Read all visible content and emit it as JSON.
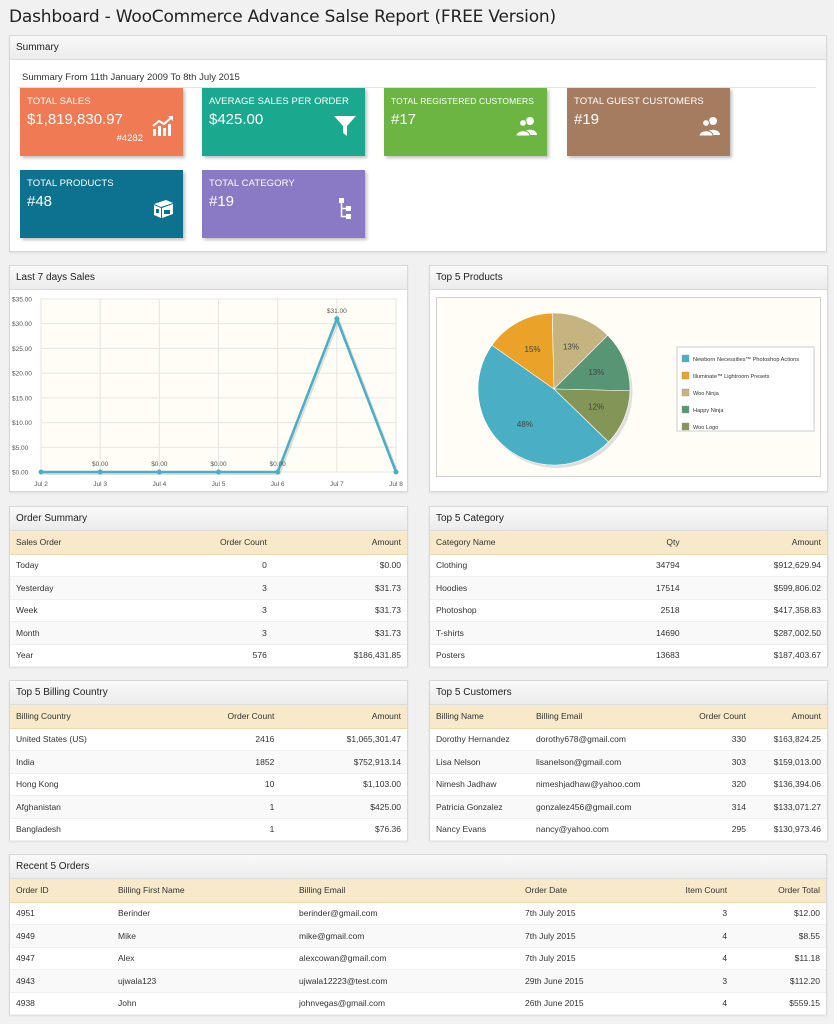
{
  "page_title": "Dashboard - WooCommerce Advance Salse Report (FREE Version)",
  "summary": {
    "heading": "Summary",
    "range": "Summary From 11th January 2009 To 8th July 2015",
    "tiles": [
      {
        "label": "TOTAL SALES",
        "value": "$1,819,830.97",
        "sub": "#4282",
        "color": "#f07a53",
        "icon": "chart-up-icon"
      },
      {
        "label": "AVERAGE SALES PER ORDER",
        "value": "$425.00",
        "sub": "",
        "color": "#1aa98e",
        "icon": "funnel-icon"
      },
      {
        "label": "TOTAL REGISTERED CUSTOMERS",
        "value": "#17",
        "sub": "",
        "color": "#6db543",
        "icon": "users-icon"
      },
      {
        "label": "TOTAL GUEST CUSTOMERS",
        "value": "#19",
        "sub": "",
        "color": "#a67c61",
        "icon": "users-icon"
      },
      {
        "label": "TOTAL PRODUCTS",
        "value": "#48",
        "sub": "",
        "color": "#0d7190",
        "icon": "box-icon"
      },
      {
        "label": "TOTAL CATEGORY",
        "value": "#19",
        "sub": "",
        "color": "#8a79c4",
        "icon": "sitemap-icon"
      }
    ]
  },
  "last7": {
    "heading": "Last 7 days Sales"
  },
  "top5products": {
    "heading": "Top 5 Products"
  },
  "chart_data": [
    {
      "type": "line",
      "x": [
        "Jul 2",
        "Jul 3",
        "Jul 4",
        "Jul 5",
        "Jul 6",
        "Jul 7",
        "Jul 8"
      ],
      "values": [
        0,
        0,
        0,
        0,
        0,
        31,
        0
      ],
      "point_labels": [
        "",
        "$0.00",
        "$0.00",
        "$0.00",
        "$0.00",
        "$31.00",
        ""
      ],
      "y_ticks": [
        "$0.00",
        "$5.00",
        "$10.00",
        "$15.00",
        "$20.00",
        "$25.00",
        "$30.00",
        "$35.00"
      ],
      "ylim": [
        0,
        35
      ],
      "grid": true,
      "color": "#4aaec5"
    },
    {
      "type": "pie",
      "slices": [
        {
          "name": "Newborn Necessities™ Photoshop Actions",
          "value": 48,
          "label": "48%",
          "color": "#4aaec5"
        },
        {
          "name": "Illuminate™ Lightroom Presets",
          "value": 15,
          "label": "15%",
          "color": "#eaa228"
        },
        {
          "name": "Woo Ninja",
          "value": 13,
          "label": "13%",
          "color": "#c5b47f"
        },
        {
          "name": "Happy Ninja",
          "value": 13,
          "label": "13%",
          "color": "#579575"
        },
        {
          "name": "Woo Logo",
          "value": 12,
          "label": "12%",
          "color": "#839557"
        }
      ],
      "legend_position": "right"
    }
  ],
  "order_summary": {
    "heading": "Order Summary",
    "columns": [
      "Sales Order",
      "Order Count",
      "Amount"
    ],
    "rows": [
      [
        "Today",
        "0",
        "$0.00"
      ],
      [
        "Yesterday",
        "3",
        "$31.73"
      ],
      [
        "Week",
        "3",
        "$31.73"
      ],
      [
        "Month",
        "3",
        "$31.73"
      ],
      [
        "Year",
        "576",
        "$186,431.85"
      ]
    ]
  },
  "top5category": {
    "heading": "Top 5 Category",
    "columns": [
      "Category Name",
      "Qty",
      "Amount"
    ],
    "rows": [
      [
        "Clothing",
        "34794",
        "$912,629.94"
      ],
      [
        "Hoodies",
        "17514",
        "$599,806.02"
      ],
      [
        "Photoshop",
        "2518",
        "$417,358.83"
      ],
      [
        "T-shirts",
        "14690",
        "$287,002.50"
      ],
      [
        "Posters",
        "13683",
        "$187,403.67"
      ]
    ]
  },
  "top5country": {
    "heading": "Top 5 Billing Country",
    "columns": [
      "Billing Country",
      "Order Count",
      "Amount"
    ],
    "rows": [
      [
        "United States (US)",
        "2416",
        "$1,065,301.47"
      ],
      [
        "India",
        "1852",
        "$752,913.14"
      ],
      [
        "Hong Kong",
        "10",
        "$1,103.00"
      ],
      [
        "Afghanistan",
        "1",
        "$425.00"
      ],
      [
        "Bangladesh",
        "1",
        "$76.36"
      ]
    ]
  },
  "top5customers": {
    "heading": "Top 5 Customers",
    "columns": [
      "Billing Name",
      "Billing Email",
      "Order Count",
      "Amount"
    ],
    "rows": [
      [
        "Dorothy Hernandez",
        "dorothy678@gmail.com",
        "330",
        "$163,824.25"
      ],
      [
        "Lisa Nelson",
        "lisanelson@gmail.com",
        "303",
        "$159,013.00"
      ],
      [
        "Nimesh Jadhaw",
        "nimeshjadhaw@yahoo.com",
        "320",
        "$136,394.06"
      ],
      [
        "Patricia Gonzalez",
        "gonzalez456@gmail.com",
        "314",
        "$133,071.27"
      ],
      [
        "Nancy Evans",
        "nancy@yahoo.com",
        "295",
        "$130,973.46"
      ]
    ]
  },
  "recent_orders": {
    "heading": "Recent 5 Orders",
    "columns": [
      "Order ID",
      "Billing First Name",
      "Billing Email",
      "Order Date",
      "Item Count",
      "Order Total"
    ],
    "rows": [
      [
        "4951",
        "Berinder",
        "berinder@gmail.com",
        "7th July 2015",
        "3",
        "$12.00"
      ],
      [
        "4949",
        "Mike",
        "mike@gmail.com",
        "7th July 2015",
        "4",
        "$8.55"
      ],
      [
        "4947",
        "Alex",
        "alexcowan@gmail.com",
        "7th July 2015",
        "4",
        "$11.18"
      ],
      [
        "4943",
        "ujwala123",
        "ujwala12223@test.com",
        "29th June 2015",
        "3",
        "$112.20"
      ],
      [
        "4938",
        "John",
        "johnvegas@gmail.com",
        "26th June 2015",
        "4",
        "$559.15"
      ]
    ]
  }
}
